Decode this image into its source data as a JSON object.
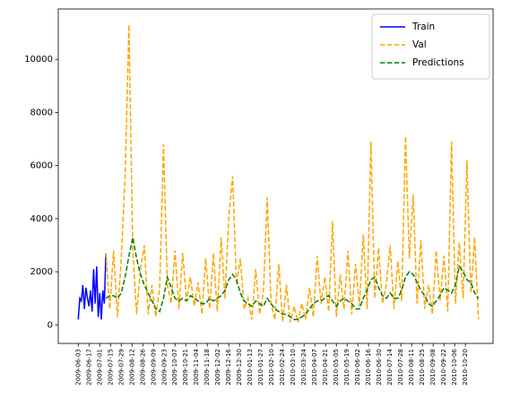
{
  "chart_data": {
    "type": "line",
    "xlim": [
      "2009-05-08",
      "2010-11-25"
    ],
    "ylim": [
      -700,
      11900
    ],
    "yticks": [
      0,
      2000,
      4000,
      6000,
      8000,
      10000
    ],
    "xticks": [
      "2009-06-03",
      "2009-06-17",
      "2009-07-01",
      "2009-07-15",
      "2009-07-29",
      "2009-08-12",
      "2009-08-26",
      "2009-09-09",
      "2009-09-23",
      "2009-10-07",
      "2009-10-21",
      "2009-11-04",
      "2009-11-18",
      "2009-12-02",
      "2009-12-16",
      "2009-12-30",
      "2010-01-13",
      "2010-01-27",
      "2010-02-10",
      "2010-02-24",
      "2010-03-10",
      "2010-03-24",
      "2010-04-07",
      "2010-04-21",
      "2010-05-05",
      "2010-05-19",
      "2010-06-02",
      "2010-06-16",
      "2010-06-30",
      "2010-07-14",
      "2010-07-28",
      "2010-08-11",
      "2010-08-25",
      "2010-09-08",
      "2010-09-22",
      "2010-10-06",
      "2010-10-20"
    ],
    "legend": "upper right",
    "series": [
      {
        "name": "Train",
        "color": "#0000ff",
        "linestyle": "solid",
        "x": [
          "2009-06-03",
          "2009-06-05",
          "2009-06-07",
          "2009-06-09",
          "2009-06-11",
          "2009-06-13",
          "2009-06-15",
          "2009-06-17",
          "2009-06-19",
          "2009-06-21",
          "2009-06-23",
          "2009-06-25",
          "2009-06-27",
          "2009-06-29",
          "2009-07-01",
          "2009-07-03",
          "2009-07-05",
          "2009-07-07",
          "2009-07-09"
        ],
        "values": [
          200,
          1000,
          900,
          1500,
          600,
          1400,
          1000,
          700,
          1300,
          500,
          2100,
          800,
          2200,
          300,
          1200,
          200,
          1300,
          800,
          2700
        ]
      },
      {
        "name": "Val",
        "color": "#ffa500",
        "linestyle": "dashed",
        "x": [
          "2009-07-09",
          "2009-07-14",
          "2009-07-19",
          "2009-07-24",
          "2009-07-29",
          "2009-08-03",
          "2009-08-08",
          "2009-08-13",
          "2009-08-18",
          "2009-08-23",
          "2009-08-28",
          "2009-09-02",
          "2009-09-07",
          "2009-09-12",
          "2009-09-17",
          "2009-09-22",
          "2009-09-27",
          "2009-10-02",
          "2009-10-07",
          "2009-10-12",
          "2009-10-17",
          "2009-10-22",
          "2009-10-27",
          "2009-11-01",
          "2009-11-06",
          "2009-11-11",
          "2009-11-16",
          "2009-11-21",
          "2009-11-26",
          "2009-12-01",
          "2009-12-06",
          "2009-12-11",
          "2009-12-16",
          "2009-12-21",
          "2009-12-26",
          "2009-12-31",
          "2010-01-05",
          "2010-01-10",
          "2010-01-15",
          "2010-01-20",
          "2010-01-25",
          "2010-01-30",
          "2010-02-04",
          "2010-02-09",
          "2010-02-14",
          "2010-02-19",
          "2010-02-24",
          "2010-03-01",
          "2010-03-06",
          "2010-03-11",
          "2010-03-16",
          "2010-03-21",
          "2010-03-26",
          "2010-03-31",
          "2010-04-05",
          "2010-04-10",
          "2010-04-15",
          "2010-04-20",
          "2010-04-25",
          "2010-04-30",
          "2010-05-05",
          "2010-05-10",
          "2010-05-15",
          "2010-05-20",
          "2010-05-25",
          "2010-05-30",
          "2010-06-04",
          "2010-06-09",
          "2010-06-14",
          "2010-06-19",
          "2010-06-24",
          "2010-06-29",
          "2010-07-04",
          "2010-07-09",
          "2010-07-14",
          "2010-07-19",
          "2010-07-24",
          "2010-07-29",
          "2010-08-03",
          "2010-08-08",
          "2010-08-13",
          "2010-08-18",
          "2010-08-23",
          "2010-08-28",
          "2010-09-02",
          "2010-09-07",
          "2010-09-12",
          "2010-09-17",
          "2010-09-22",
          "2010-09-27",
          "2010-10-02",
          "2010-10-07",
          "2010-10-12",
          "2010-10-17",
          "2010-10-22",
          "2010-10-27",
          "2010-11-01",
          "2010-11-06"
        ],
        "values": [
          2700,
          600,
          2800,
          300,
          2500,
          5600,
          11300,
          2800,
          400,
          2100,
          3000,
          400,
          1500,
          300,
          1400,
          6800,
          1500,
          800,
          2800,
          600,
          2700,
          900,
          1800,
          700,
          1600,
          400,
          2500,
          600,
          2700,
          500,
          3300,
          1000,
          4100,
          5600,
          1500,
          2500,
          600,
          1000,
          200,
          2100,
          400,
          1200,
          4800,
          800,
          200,
          2300,
          100,
          1500,
          100,
          700,
          100,
          800,
          200,
          1400,
          300,
          2600,
          800,
          1800,
          500,
          3900,
          300,
          1900,
          600,
          2800,
          400,
          2300,
          700,
          3400,
          600,
          6900,
          1000,
          2900,
          800,
          1500,
          3000,
          600,
          2400,
          900,
          7100,
          2500,
          4900,
          800,
          3200,
          600,
          1500,
          400,
          2800,
          900,
          2600,
          500,
          6900,
          800,
          3100,
          1000,
          6200,
          1200,
          3300,
          200
        ]
      },
      {
        "name": "Predictions",
        "color": "#008000",
        "linestyle": "dashed",
        "x": [
          "2009-07-09",
          "2009-07-14",
          "2009-07-19",
          "2009-07-24",
          "2009-07-29",
          "2009-08-03",
          "2009-08-08",
          "2009-08-13",
          "2009-08-18",
          "2009-08-23",
          "2009-08-28",
          "2009-09-02",
          "2009-09-07",
          "2009-09-12",
          "2009-09-17",
          "2009-09-22",
          "2009-09-27",
          "2009-10-02",
          "2009-10-07",
          "2009-10-12",
          "2009-10-17",
          "2009-10-22",
          "2009-10-27",
          "2009-11-01",
          "2009-11-06",
          "2009-11-11",
          "2009-11-16",
          "2009-11-21",
          "2009-11-26",
          "2009-12-01",
          "2009-12-06",
          "2009-12-11",
          "2009-12-16",
          "2009-12-21",
          "2009-12-26",
          "2009-12-31",
          "2010-01-05",
          "2010-01-10",
          "2010-01-15",
          "2010-01-20",
          "2010-01-25",
          "2010-01-30",
          "2010-02-04",
          "2010-02-09",
          "2010-02-14",
          "2010-02-19",
          "2010-02-24",
          "2010-03-01",
          "2010-03-06",
          "2010-03-11",
          "2010-03-16",
          "2010-03-21",
          "2010-03-26",
          "2010-03-31",
          "2010-04-05",
          "2010-04-10",
          "2010-04-15",
          "2010-04-20",
          "2010-04-25",
          "2010-04-30",
          "2010-05-05",
          "2010-05-10",
          "2010-05-15",
          "2010-05-20",
          "2010-05-25",
          "2010-05-30",
          "2010-06-04",
          "2010-06-09",
          "2010-06-14",
          "2010-06-19",
          "2010-06-24",
          "2010-06-29",
          "2010-07-04",
          "2010-07-09",
          "2010-07-14",
          "2010-07-19",
          "2010-07-24",
          "2010-07-29",
          "2010-08-03",
          "2010-08-08",
          "2010-08-13",
          "2010-08-18",
          "2010-08-23",
          "2010-08-28",
          "2010-09-02",
          "2010-09-07",
          "2010-09-12",
          "2010-09-17",
          "2010-09-22",
          "2010-09-27",
          "2010-10-02",
          "2010-10-07",
          "2010-10-12",
          "2010-10-17",
          "2010-10-22",
          "2010-10-27",
          "2010-11-01",
          "2010-11-06"
        ],
        "values": [
          1000,
          1100,
          1100,
          1000,
          1200,
          1800,
          2600,
          3300,
          2500,
          1900,
          1500,
          1200,
          900,
          600,
          500,
          1000,
          1800,
          1400,
          1000,
          900,
          1000,
          900,
          1100,
          1000,
          900,
          800,
          800,
          1000,
          900,
          1000,
          1100,
          1300,
          1700,
          1900,
          1700,
          1200,
          900,
          800,
          700,
          900,
          800,
          700,
          1000,
          800,
          600,
          500,
          400,
          400,
          300,
          200,
          200,
          300,
          400,
          600,
          800,
          900,
          900,
          1000,
          1100,
          900,
          700,
          900,
          1000,
          900,
          800,
          600,
          600,
          1000,
          1300,
          1700,
          1800,
          1400,
          1100,
          1000,
          1200,
          1000,
          1000,
          1300,
          1800,
          2000,
          1900,
          1600,
          1300,
          1100,
          800,
          700,
          900,
          1100,
          1400,
          1300,
          1200,
          1500,
          2200,
          2000,
          1700,
          1600,
          1200,
          1000
        ]
      }
    ]
  }
}
